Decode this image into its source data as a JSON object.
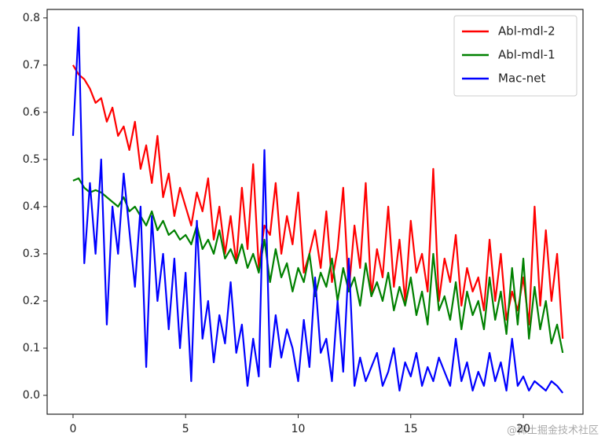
{
  "chart_data": {
    "type": "line",
    "x": [
      0,
      0.25,
      0.5,
      0.75,
      1,
      1.25,
      1.5,
      1.75,
      2,
      2.25,
      2.5,
      2.75,
      3,
      3.25,
      3.5,
      3.75,
      4,
      4.25,
      4.5,
      4.75,
      5,
      5.25,
      5.5,
      5.75,
      6,
      6.25,
      6.5,
      6.75,
      7,
      7.25,
      7.5,
      7.75,
      8,
      8.25,
      8.5,
      8.75,
      9,
      9.25,
      9.5,
      9.75,
      10,
      10.25,
      10.5,
      10.75,
      11,
      11.25,
      11.5,
      11.75,
      12,
      12.25,
      12.5,
      12.75,
      13,
      13.25,
      13.5,
      13.75,
      14,
      14.25,
      14.5,
      14.75,
      15,
      15.25,
      15.5,
      15.75,
      16,
      16.25,
      16.5,
      16.75,
      17,
      17.25,
      17.5,
      17.75,
      18,
      18.25,
      18.5,
      18.75,
      19,
      19.25,
      19.5,
      19.75,
      20,
      20.25,
      20.5,
      20.75,
      21,
      21.25,
      21.5,
      21.75
    ],
    "series": [
      {
        "name": "Abl-mdl-2",
        "color": "#ff0000",
        "values": [
          0.7,
          0.68,
          0.67,
          0.65,
          0.62,
          0.63,
          0.58,
          0.61,
          0.55,
          0.57,
          0.52,
          0.58,
          0.48,
          0.53,
          0.45,
          0.55,
          0.42,
          0.47,
          0.38,
          0.44,
          0.4,
          0.36,
          0.43,
          0.39,
          0.46,
          0.33,
          0.4,
          0.3,
          0.38,
          0.28,
          0.44,
          0.31,
          0.49,
          0.27,
          0.36,
          0.34,
          0.45,
          0.3,
          0.38,
          0.32,
          0.43,
          0.26,
          0.3,
          0.35,
          0.27,
          0.39,
          0.24,
          0.31,
          0.44,
          0.22,
          0.36,
          0.27,
          0.45,
          0.21,
          0.31,
          0.25,
          0.4,
          0.23,
          0.33,
          0.2,
          0.37,
          0.26,
          0.3,
          0.22,
          0.48,
          0.2,
          0.29,
          0.24,
          0.34,
          0.19,
          0.27,
          0.22,
          0.25,
          0.18,
          0.33,
          0.2,
          0.3,
          0.16,
          0.22,
          0.18,
          0.25,
          0.15,
          0.4,
          0.19,
          0.35,
          0.2,
          0.3,
          0.12
        ]
      },
      {
        "name": "Abl-mdl-1",
        "color": "#008000",
        "values": [
          0.455,
          0.46,
          0.44,
          0.43,
          0.435,
          0.43,
          0.42,
          0.41,
          0.4,
          0.42,
          0.39,
          0.4,
          0.38,
          0.36,
          0.39,
          0.35,
          0.37,
          0.34,
          0.35,
          0.33,
          0.34,
          0.32,
          0.36,
          0.31,
          0.33,
          0.3,
          0.35,
          0.29,
          0.31,
          0.28,
          0.32,
          0.27,
          0.3,
          0.26,
          0.33,
          0.24,
          0.31,
          0.25,
          0.28,
          0.22,
          0.27,
          0.24,
          0.3,
          0.21,
          0.26,
          0.23,
          0.29,
          0.2,
          0.27,
          0.22,
          0.25,
          0.19,
          0.28,
          0.21,
          0.24,
          0.2,
          0.26,
          0.18,
          0.23,
          0.19,
          0.25,
          0.17,
          0.22,
          0.15,
          0.3,
          0.18,
          0.21,
          0.16,
          0.24,
          0.14,
          0.22,
          0.17,
          0.2,
          0.14,
          0.25,
          0.16,
          0.22,
          0.13,
          0.27,
          0.15,
          0.29,
          0.12,
          0.23,
          0.14,
          0.2,
          0.11,
          0.15,
          0.09
        ]
      },
      {
        "name": "Mac-net",
        "color": "#0000ff",
        "values": [
          0.55,
          0.78,
          0.28,
          0.45,
          0.3,
          0.5,
          0.15,
          0.4,
          0.3,
          0.47,
          0.35,
          0.23,
          0.4,
          0.06,
          0.38,
          0.2,
          0.3,
          0.14,
          0.29,
          0.1,
          0.26,
          0.03,
          0.37,
          0.12,
          0.2,
          0.07,
          0.17,
          0.11,
          0.24,
          0.09,
          0.15,
          0.02,
          0.12,
          0.04,
          0.52,
          0.06,
          0.17,
          0.08,
          0.14,
          0.1,
          0.03,
          0.16,
          0.06,
          0.25,
          0.09,
          0.12,
          0.03,
          0.2,
          0.05,
          0.29,
          0.02,
          0.08,
          0.03,
          0.06,
          0.09,
          0.02,
          0.05,
          0.1,
          0.01,
          0.07,
          0.04,
          0.09,
          0.02,
          0.06,
          0.03,
          0.08,
          0.05,
          0.02,
          0.12,
          0.03,
          0.07,
          0.01,
          0.05,
          0.02,
          0.09,
          0.03,
          0.07,
          0.01,
          0.12,
          0.02,
          0.04,
          0.01,
          0.03,
          0.02,
          0.01,
          0.03,
          0.02,
          0.005
        ]
      }
    ],
    "xlim": [
      -1.15,
      22.65
    ],
    "ylim": [
      -0.04,
      0.818
    ],
    "xticks": [
      0,
      5,
      10,
      15,
      20
    ],
    "yticks": [
      {
        "value": 0,
        "label": "0.0"
      },
      0.1,
      0.2,
      0.3,
      0.4,
      0.5,
      0.6,
      0.7,
      0.8
    ],
    "legend": "upper right",
    "watermark": "@稀土掘金技术社区"
  }
}
